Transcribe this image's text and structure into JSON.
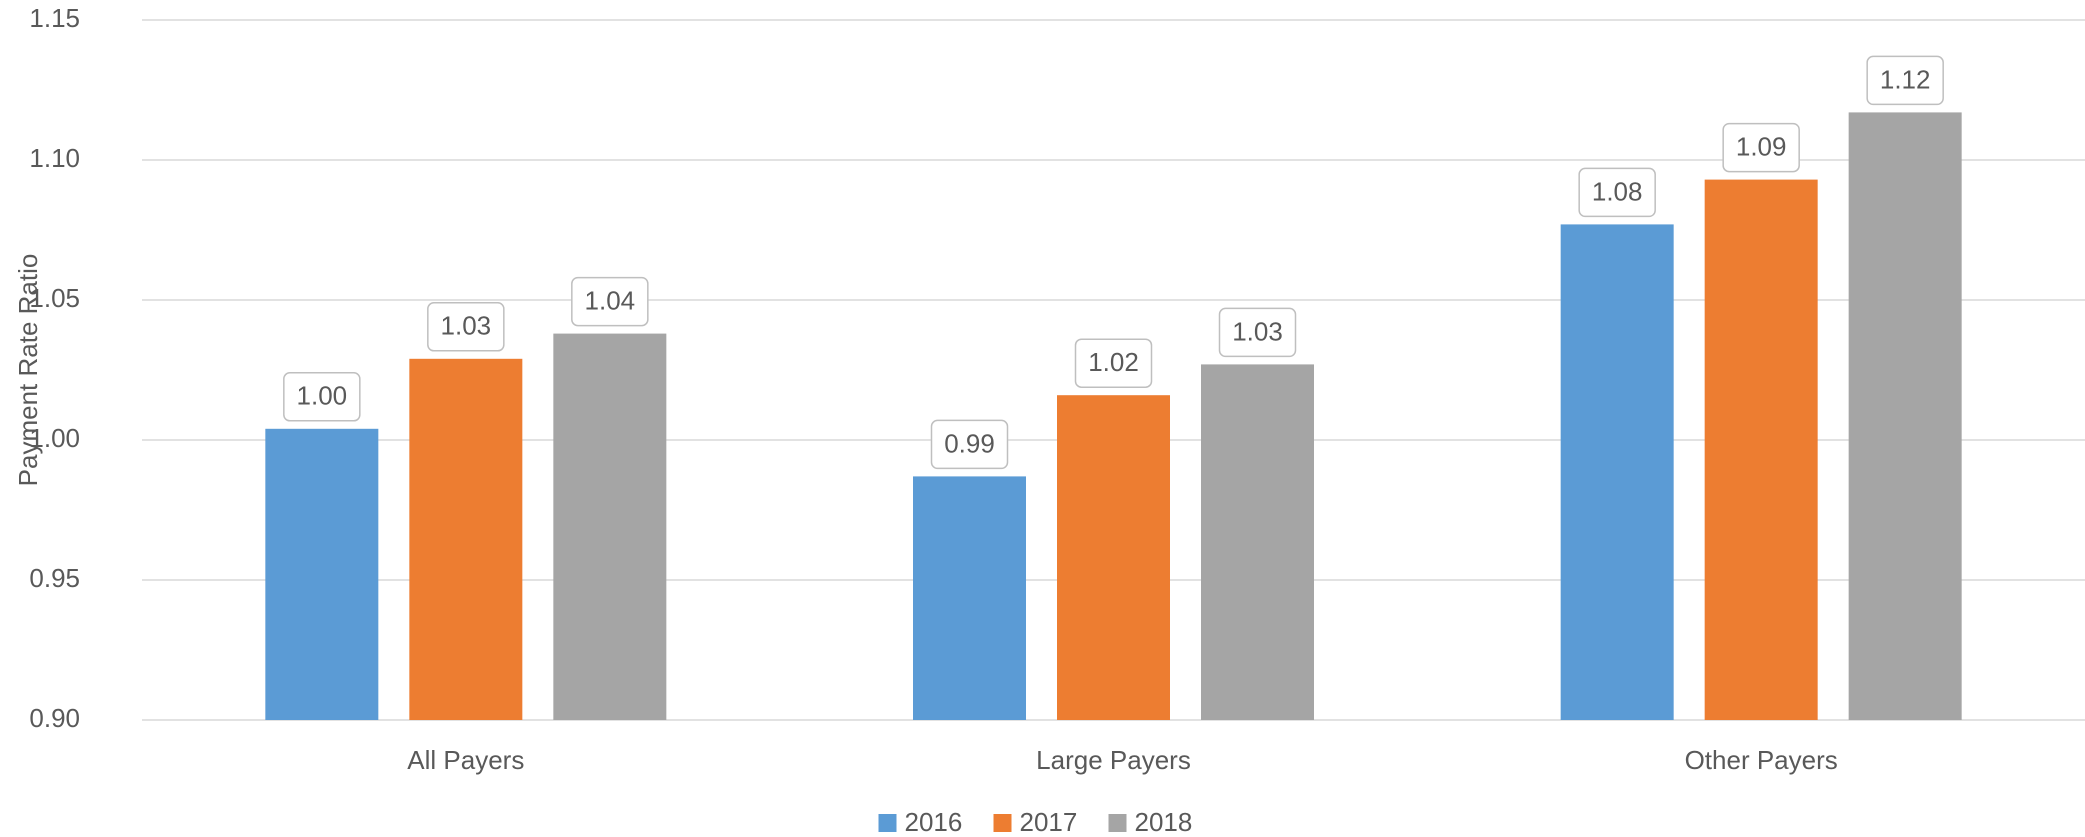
{
  "chart_data": {
    "type": "bar",
    "y_label": "Payment Rate Ratio",
    "categories": [
      "All Payers",
      "Large Payers",
      "Other Payers"
    ],
    "series": [
      {
        "name": "2016",
        "color": "#5b9bd5",
        "values": [
          1.004,
          0.987,
          1.077
        ],
        "value_labels": [
          "1.00",
          "0.99",
          "1.08"
        ]
      },
      {
        "name": "2017",
        "color": "#ed7d31",
        "values": [
          1.029,
          1.016,
          1.093
        ],
        "value_labels": [
          "1.03",
          "1.02",
          "1.09"
        ]
      },
      {
        "name": "2018",
        "color": "#a5a5a5",
        "values": [
          1.038,
          1.027,
          1.117
        ],
        "value_labels": [
          "1.04",
          "1.03",
          "1.12"
        ]
      }
    ],
    "ylim": [
      0.9,
      1.15
    ],
    "yticks": [
      {
        "value": 0.9,
        "label": "0.90"
      },
      0.95,
      {
        "value": 1.0,
        "label": "1.00"
      },
      1.05,
      {
        "value": 1.1,
        "label": "1.10"
      },
      1.15
    ],
    "grid": true,
    "legend": "bottom"
  }
}
